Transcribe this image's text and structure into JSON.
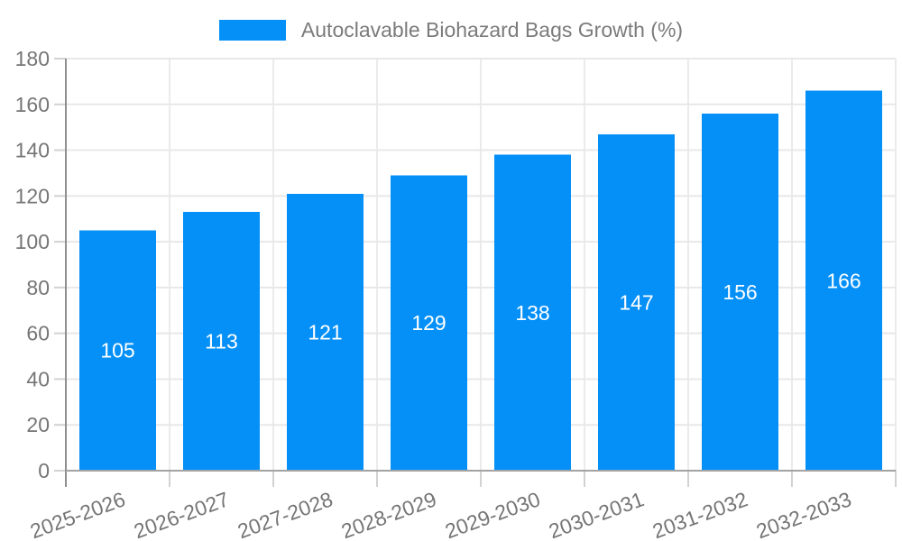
{
  "legend": {
    "label": "Autoclavable Biohazard Bags Growth (%)"
  },
  "chart_data": {
    "type": "bar",
    "title": "",
    "legend_entries": [
      "Autoclavable Biohazard Bags Growth (%)"
    ],
    "legend_position": "top",
    "categories": [
      "2025-2026",
      "2026-2027",
      "2027-2028",
      "2028-2029",
      "2029-2030",
      "2030-2031",
      "2031-2032",
      "2032-2033"
    ],
    "values": [
      105,
      113,
      121,
      129,
      138,
      147,
      156,
      166
    ],
    "xlabel": "",
    "ylabel": "",
    "ylim": [
      0,
      180
    ],
    "yticks": [
      0,
      20,
      40,
      60,
      80,
      100,
      120,
      140,
      160,
      180
    ],
    "grid": true,
    "bar_labels_shown": true,
    "bar_color": "#0590F8",
    "bar_label_color": "#FFFFFF",
    "axis_text_color": "#757575",
    "grid_color": "#E8E8E8",
    "y_axis_line_color": "#8F8F8F",
    "x_axis_line_color": "#A3A3A3",
    "tick_color": "#D2D2D2",
    "background": "#FFFFFF"
  }
}
